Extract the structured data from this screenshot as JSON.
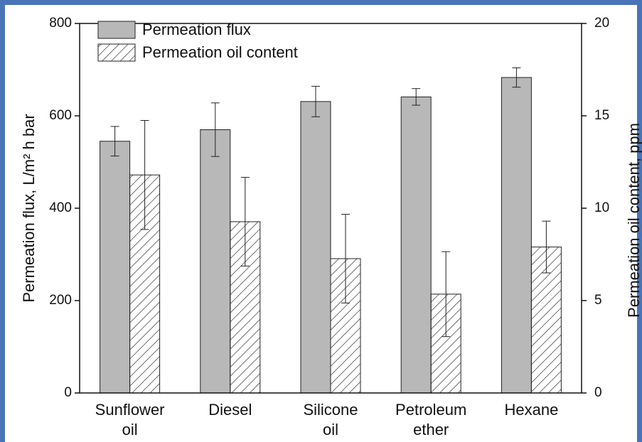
{
  "chart_data": {
    "type": "bar",
    "categories": [
      [
        "Sunflower",
        "oil"
      ],
      [
        "Diesel"
      ],
      [
        "Silicone",
        "oil"
      ],
      [
        "Petroleum",
        "ether"
      ],
      [
        "Hexane"
      ]
    ],
    "ylabel": "Permeation flux, L/m² h bar",
    "y2label": "Permeation oil content, ppm",
    "ylim": [
      0,
      800
    ],
    "yticks": [
      0,
      200,
      400,
      600,
      800
    ],
    "y2lim": [
      0,
      20
    ],
    "y2ticks": [
      0,
      5,
      10,
      15,
      20
    ],
    "legend": "upper left",
    "series": [
      {
        "name": "Permeation flux",
        "color": "#b8b8b8",
        "hatch": false,
        "values": [
          545,
          570,
          631,
          641,
          683
        ],
        "errors": [
          32,
          58,
          33,
          18,
          21
        ]
      },
      {
        "name": "Permeation oil content",
        "color": "#ffffff",
        "hatch": true,
        "axis": "y2",
        "values": [
          11.8,
          9.27,
          7.27,
          5.35,
          7.9
        ],
        "errors": [
          2.95,
          2.4,
          2.4,
          2.3,
          1.4
        ]
      }
    ]
  }
}
